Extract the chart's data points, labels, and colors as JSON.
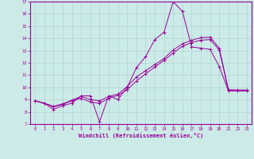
{
  "title": "",
  "xlabel": "Windchill (Refroidissement éolien,°C)",
  "ylabel": "",
  "bg_color": "#cceae7",
  "line_color": "#990099",
  "grid_color": "#aad8d5",
  "xlim": [
    -0.5,
    23.5
  ],
  "ylim": [
    7,
    17
  ],
  "xticks": [
    0,
    1,
    2,
    3,
    4,
    5,
    6,
    7,
    8,
    9,
    10,
    11,
    12,
    13,
    14,
    15,
    16,
    17,
    18,
    19,
    20,
    21,
    22,
    23
  ],
  "yticks": [
    7,
    8,
    9,
    10,
    11,
    12,
    13,
    14,
    15,
    16,
    17
  ],
  "series1_x": [
    0,
    1,
    2,
    3,
    4,
    5,
    6,
    7,
    8,
    9,
    10,
    11,
    12,
    13,
    14,
    15,
    16,
    17,
    18,
    19,
    20,
    21,
    22,
    23
  ],
  "series1_y": [
    8.9,
    8.7,
    8.2,
    8.5,
    8.7,
    9.3,
    9.3,
    7.2,
    9.3,
    9.0,
    10.0,
    11.6,
    12.5,
    13.9,
    14.5,
    17.0,
    16.2,
    13.3,
    13.2,
    13.1,
    11.7,
    9.7,
    9.7,
    9.7
  ],
  "series2_x": [
    0,
    1,
    2,
    3,
    4,
    5,
    6,
    7,
    8,
    9,
    10,
    11,
    12,
    13,
    14,
    15,
    16,
    17,
    18,
    19,
    20,
    21,
    22,
    23
  ],
  "series2_y": [
    8.9,
    8.7,
    8.4,
    8.6,
    8.9,
    9.1,
    8.8,
    8.7,
    9.1,
    9.35,
    9.8,
    10.5,
    11.1,
    11.65,
    12.2,
    12.8,
    13.35,
    13.65,
    13.85,
    13.9,
    13.05,
    9.75,
    9.72,
    9.72
  ],
  "series3_x": [
    0,
    1,
    2,
    3,
    4,
    5,
    6,
    7,
    8,
    9,
    10,
    11,
    12,
    13,
    14,
    15,
    16,
    17,
    18,
    19,
    20,
    21,
    22,
    23
  ],
  "series3_y": [
    8.9,
    8.7,
    8.45,
    8.65,
    8.95,
    9.25,
    9.0,
    8.9,
    9.25,
    9.45,
    10.05,
    10.85,
    11.35,
    11.85,
    12.35,
    13.05,
    13.55,
    13.85,
    14.05,
    14.1,
    13.2,
    9.8,
    9.78,
    9.78
  ]
}
